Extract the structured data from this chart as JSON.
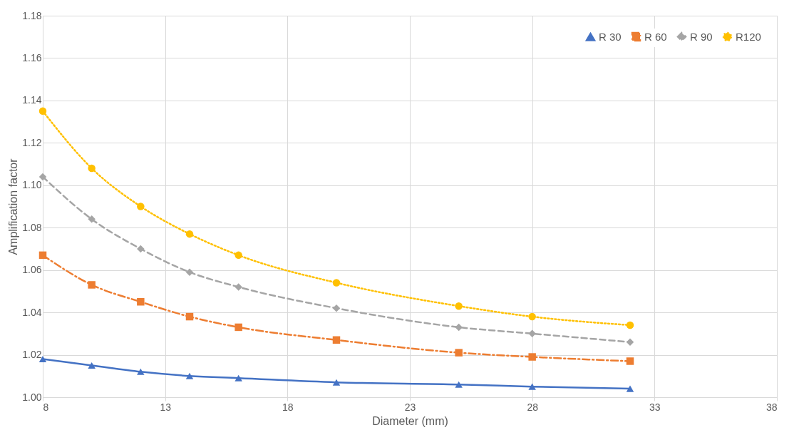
{
  "chart_data": {
    "type": "line",
    "xlabel": "Diameter (mm)",
    "ylabel": "Amplification factor",
    "x": [
      8,
      10,
      12,
      14,
      16,
      20,
      25,
      28,
      32
    ],
    "xlim": [
      8,
      38
    ],
    "xticks": [
      8,
      13,
      18,
      23,
      28,
      33,
      38
    ],
    "ylim": [
      1.0,
      1.18
    ],
    "yticks": [
      {
        "value": 1.0,
        "label": "1.00"
      },
      {
        "value": 1.02,
        "label": "1.02"
      },
      {
        "value": 1.04,
        "label": "1.04"
      },
      {
        "value": 1.06,
        "label": "1.06"
      },
      {
        "value": 1.08,
        "label": "1.08"
      },
      {
        "value": 1.1,
        "label": "1.10"
      },
      {
        "value": 1.12,
        "label": "1.12"
      },
      {
        "value": 1.14,
        "label": "1.14"
      },
      {
        "value": 1.16,
        "label": "1.16"
      },
      {
        "value": 1.18,
        "label": "1.18"
      }
    ],
    "grid": true,
    "legend": "top right",
    "series": [
      {
        "name": "R 30",
        "color": "#4472c4",
        "marker": "triangle",
        "line_style": "solid",
        "values": [
          1.018,
          1.015,
          1.012,
          1.01,
          1.009,
          1.007,
          1.006,
          1.005,
          1.004
        ]
      },
      {
        "name": "R 60",
        "color": "#ed7d31",
        "marker": "square",
        "line_style": "dashdot",
        "values": [
          1.067,
          1.053,
          1.045,
          1.038,
          1.033,
          1.027,
          1.021,
          1.019,
          1.017
        ]
      },
      {
        "name": "R 90",
        "color": "#a5a5a5",
        "marker": "diamond",
        "line_style": "dashed",
        "values": [
          1.104,
          1.084,
          1.07,
          1.059,
          1.052,
          1.042,
          1.033,
          1.03,
          1.026
        ]
      },
      {
        "name": "R120",
        "color": "#ffc000",
        "marker": "circle",
        "line_style": "dotted",
        "values": [
          1.135,
          1.108,
          1.09,
          1.077,
          1.067,
          1.054,
          1.043,
          1.038,
          1.034
        ]
      }
    ]
  }
}
